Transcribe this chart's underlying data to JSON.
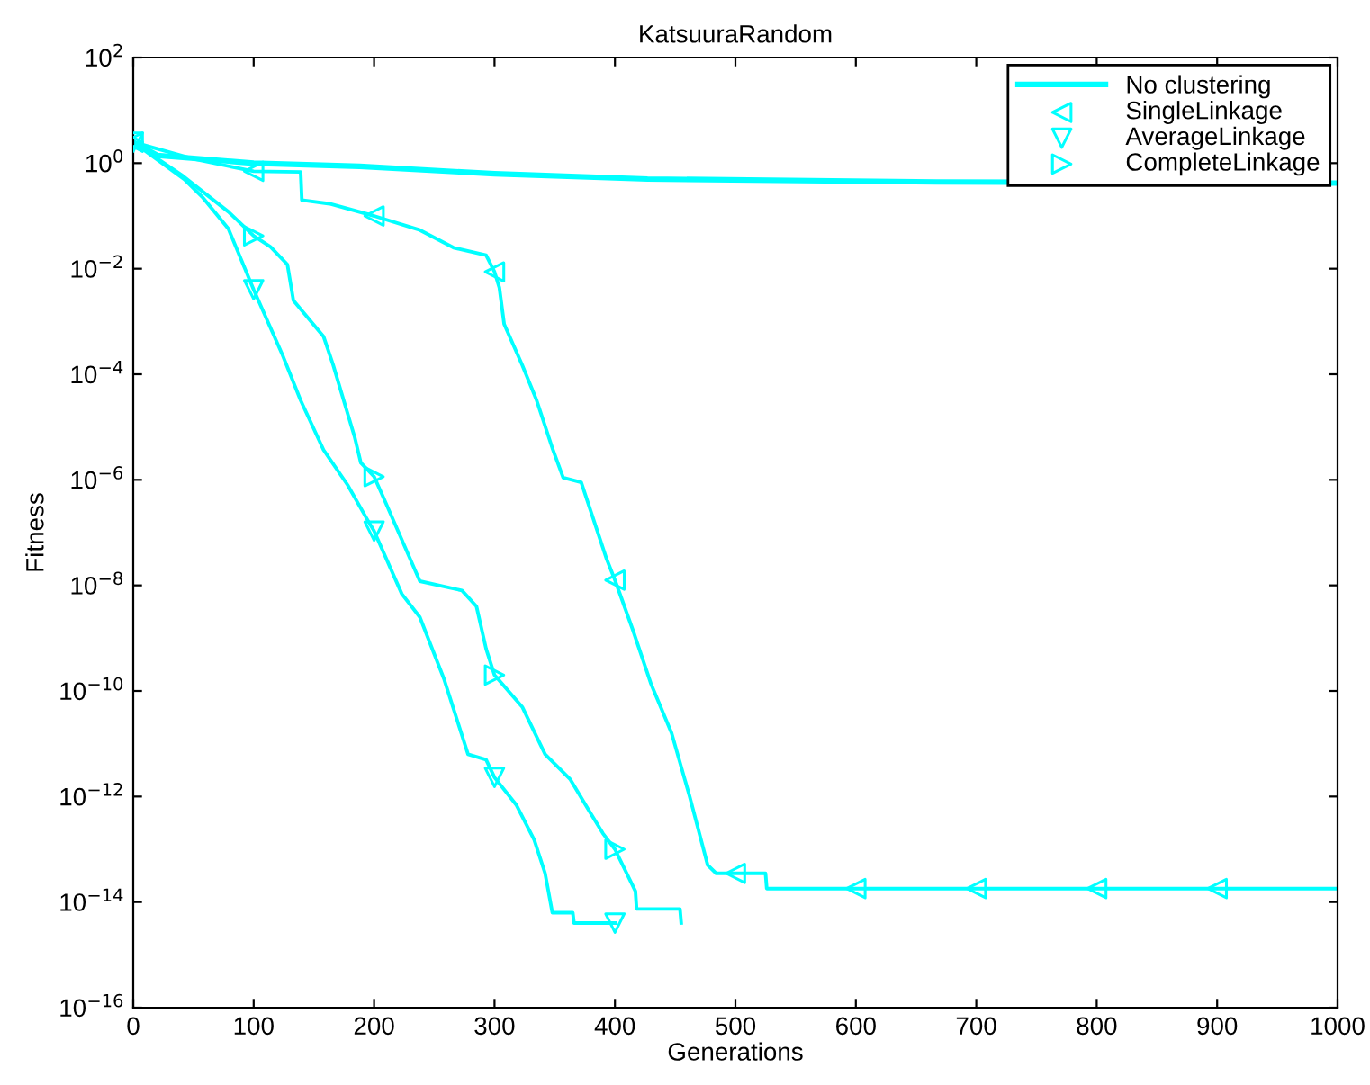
{
  "chart_data": {
    "type": "line",
    "title": "KatsuuraRandom",
    "xlabel": "Generations",
    "ylabel": "Fitness",
    "log": "y",
    "xlim": [
      0,
      1000
    ],
    "ylim": [
      1e-16,
      100
    ],
    "xticks": [
      0,
      100,
      200,
      300,
      400,
      500,
      600,
      700,
      800,
      900,
      1000
    ],
    "yticks": [
      {
        "value": 1e-16,
        "label": "10$^{−16}$"
      },
      {
        "value": 1e-14,
        "label": "10$^{−14}$"
      },
      {
        "value": 1e-12,
        "label": "10$^{−12}$"
      },
      {
        "value": 1e-10,
        "label": "10$^{−10}$"
      },
      {
        "value": 1e-08,
        "label": "10$^{−8}$"
      },
      {
        "value": 1e-06,
        "label": "10$^{−6}$"
      },
      {
        "value": 0.0001,
        "label": "10$^{−4}$"
      },
      {
        "value": 0.01,
        "label": "10$^{−2}$"
      },
      {
        "value": 1,
        "label": "10$^{0}$"
      },
      {
        "value": 100,
        "label": "10$^{2}$"
      }
    ],
    "legend": "top right",
    "grid": false,
    "series": [
      {
        "name": "No clustering",
        "color": "#00ffff",
        "marker": "none",
        "x": [
          0,
          20,
          100,
          188,
          300,
          427,
          667,
          1000
        ],
        "values": [
          2.5,
          1.4,
          1.0,
          0.87,
          0.63,
          0.5,
          0.44,
          0.42
        ]
      },
      {
        "color": "#00ffff",
        "marker": "none",
        "x": [
          0,
          50,
          100,
          139,
          140,
          163,
          200,
          238,
          266,
          293,
          300,
          304,
          308,
          323,
          335,
          348,
          357,
          372,
          393,
          400,
          415,
          430,
          447,
          462,
          477,
          484,
          500,
          525,
          526,
          1000
        ],
        "values": [
          2.5,
          1.2,
          0.7,
          0.68,
          0.2,
          0.17,
          0.1,
          0.054,
          0.025,
          0.018,
          0.0087,
          0.0044,
          0.00089,
          0.00015,
          3.2e-05,
          4e-06,
          1.1e-06,
          9e-07,
          3.2e-08,
          1.26e-08,
          1.4e-09,
          1.35e-10,
          1.6e-11,
          1e-12,
          5e-14,
          3.5e-14,
          3.5e-14,
          3.5e-14,
          1.8e-14,
          1.8e-14
        ]
      },
      {
        "color": "#00ffff",
        "marker": "none",
        "x": [
          0,
          43,
          58,
          79,
          100,
          124,
          139,
          158,
          178,
          193,
          200,
          223,
          238,
          258,
          278,
          293,
          300,
          318,
          333,
          342,
          348,
          365,
          366,
          400
        ],
        "values": [
          2.5,
          0.48,
          0.22,
          0.057,
          0.004,
          0.00023,
          3.2e-05,
          3.7e-06,
          8e-07,
          2e-07,
          1.07e-07,
          6.9e-09,
          2.5e-09,
          1.7e-10,
          6.3e-12,
          5e-12,
          2.3e-12,
          7e-13,
          1.5e-13,
          3.5e-14,
          6.3e-15,
          6.3e-15,
          4e-15,
          4e-15
        ]
      },
      {
        "color": "#00ffff",
        "marker": "none",
        "x": [
          0,
          40,
          79,
          100,
          114,
          128,
          133,
          158,
          166,
          184,
          189,
          200,
          208,
          238,
          273,
          285,
          293,
          300,
          323,
          342,
          363,
          378,
          390,
          400,
          417,
          418,
          453,
          454,
          455
        ],
        "values": [
          2.5,
          0.6,
          0.12,
          0.042,
          0.026,
          0.012,
          0.0025,
          0.00052,
          0.00015,
          6.3e-06,
          2.1e-06,
          1.15e-06,
          4.5e-07,
          1.2e-08,
          8e-09,
          4e-09,
          6.3e-10,
          2e-10,
          5e-11,
          6.3e-12,
          2.1e-12,
          5.6e-13,
          2e-13,
          1e-13,
          1.6e-14,
          7.4e-15,
          7.4e-15,
          7.4e-15,
          4e-15
        ]
      },
      {
        "name": "SingleLinkage",
        "type": "scatter",
        "color": "#00ffff",
        "marker": "triangle_left",
        "x": [
          0,
          100,
          200,
          300,
          400,
          500,
          600,
          700,
          800,
          900
        ],
        "values": [
          2.5,
          0.7,
          0.1,
          0.0087,
          1.26e-08,
          3.5e-14,
          1.8e-14,
          1.8e-14,
          1.8e-14,
          1.8e-14
        ]
      },
      {
        "name": "AverageLinkage",
        "type": "scatter",
        "color": "#00ffff",
        "marker": "triangle_down",
        "x": [
          0,
          100,
          200,
          300,
          400
        ],
        "values": [
          2.5,
          0.004,
          1.07e-07,
          2.3e-12,
          4e-15
        ]
      },
      {
        "name": "CompleteLinkage",
        "type": "scatter",
        "color": "#00ffff",
        "marker": "triangle_right",
        "x": [
          0,
          100,
          200,
          300,
          400
        ],
        "values": [
          2.5,
          0.042,
          1.15e-06,
          2e-10,
          1e-13
        ]
      }
    ]
  }
}
